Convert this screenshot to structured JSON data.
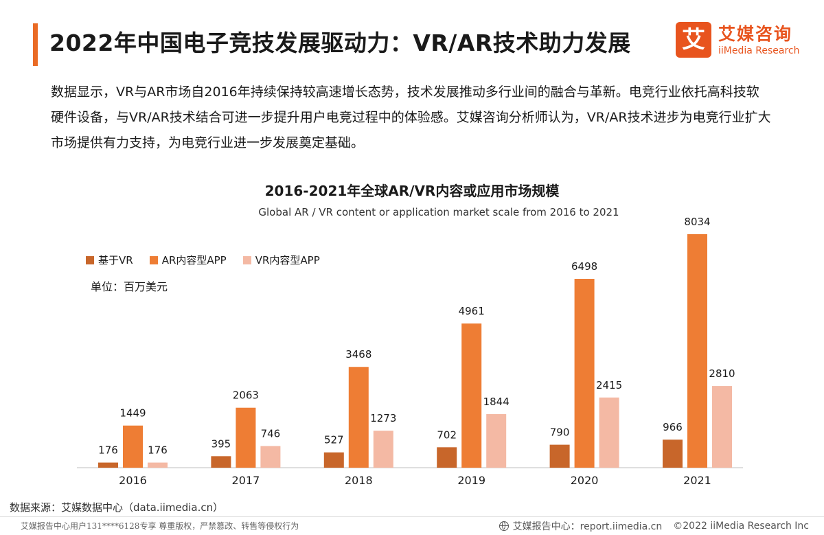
{
  "header": {
    "title": "2022年中国电子竞技发展驱动力：VR/AR技术助力发展",
    "logo_mark": "艾",
    "logo_cn": "艾媒咨询",
    "logo_en": "iiMedia Research"
  },
  "description": "数据显示，VR与AR市场自2016年持续保持较高速增长态势，技术发展推动多行业间的融合与革新。电竞行业依托高科技软硬件设备，与VR/AR技术结合可进一步提升用户电竞过程中的体验感。艾媒咨询分析师认为，VR/AR技术进步为电竞行业扩大市场提供有力支持，为电竞行业进一步发展奠定基础。",
  "colors": {
    "accent": "#ea6b25",
    "series_vr_base": "#c8662a",
    "series_ar_app": "#ee7d34",
    "series_vr_app": "#f4b9a4"
  },
  "chart_data": {
    "type": "bar",
    "title": "2016-2021年全球AR/VR内容或应用市场规模",
    "subtitle": "Global AR / VR content or application market scale from 2016 to 2021",
    "unit_label": "单位：百万美元",
    "categories": [
      "2016",
      "2017",
      "2018",
      "2019",
      "2020",
      "2021"
    ],
    "series": [
      {
        "name": "基于VR",
        "values": [
          176,
          395,
          527,
          702,
          790,
          966
        ]
      },
      {
        "name": "AR内容型APP",
        "values": [
          1449,
          2063,
          3468,
          4961,
          6498,
          8034
        ]
      },
      {
        "name": "VR内容型APP",
        "values": [
          176,
          746,
          1273,
          1844,
          2415,
          2810
        ]
      }
    ],
    "ylim": [
      0,
      8034
    ],
    "grid": false,
    "legend_position": "top-left"
  },
  "source": "数据来源：艾媒数据中心（data.iimedia.cn）",
  "footer": {
    "left": "艾媒报告中心用户131****6128专享 尊重版权，严禁篡改、转售等侵权行为",
    "center": "艾媒报告中心：report.iimedia.cn",
    "right": "©2022  iiMedia Research  Inc"
  }
}
